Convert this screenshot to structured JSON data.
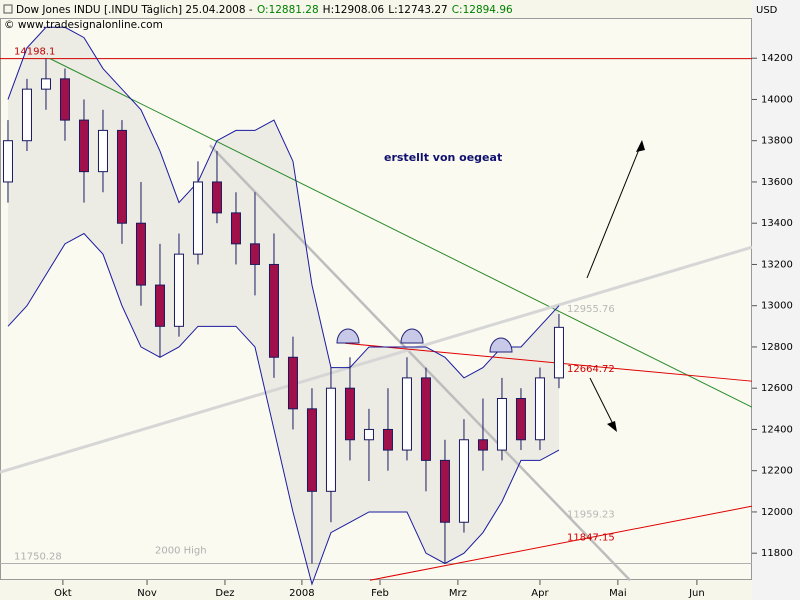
{
  "chart_data": {
    "type": "candlestick",
    "title": "Dow Jones INDU [.INDU  Täglich] 25.04.2008 -",
    "ohlc_labels": [
      {
        "text": "O:12881.28",
        "color": "#008000"
      },
      {
        "text": "H:12908.06",
        "color": "#000000"
      },
      {
        "text": "L:12743.27",
        "color": "#000000"
      },
      {
        "text": "C:12894.96",
        "color": "#008000"
      }
    ],
    "source": "© www.tradesignalonline.com",
    "y_unit": "USD",
    "note": "erstellt von oegeat",
    "xlim": [
      -0.42,
      39.16
    ],
    "xticks": [
      {
        "value": 2.89,
        "label": "Okt"
      },
      {
        "value": 7.32,
        "label": "Nov"
      },
      {
        "value": 11.42,
        "label": "Dez"
      },
      {
        "value": 15.47,
        "label": "2008"
      },
      {
        "value": 19.58,
        "label": "Feb"
      },
      {
        "value": 23.68,
        "label": "Mrz"
      },
      {
        "value": 28,
        "label": "Apr"
      },
      {
        "value": 32.1,
        "label": "Mai"
      },
      {
        "value": 36.26,
        "label": "Jun"
      }
    ],
    "ylim": [
      11670,
      14395
    ],
    "yticks": [
      11800,
      12000,
      12200,
      12400,
      12600,
      12800,
      13000,
      13200,
      13400,
      13600,
      13800,
      14000,
      14200
    ],
    "candles": {
      "up_color": "#ffffff",
      "down_color": "#a0104a",
      "wick_color": "#1a1a60",
      "open": [
        13600,
        13800,
        14050,
        14100,
        13900,
        13650,
        13850,
        13400,
        13100,
        12900,
        13250,
        13600,
        13450,
        13300,
        13200,
        12750,
        12500,
        12100,
        12600,
        12350,
        12400,
        12300,
        12650,
        12250,
        11950,
        12350,
        12300,
        12550,
        12350,
        12650
      ],
      "high": [
        13900,
        14100,
        14198,
        14150,
        14000,
        13950,
        13900,
        13600,
        13300,
        13350,
        13700,
        13750,
        13550,
        13550,
        13350,
        12850,
        12600,
        12700,
        12750,
        12500,
        12600,
        12750,
        12700,
        12350,
        12450,
        12550,
        12650,
        12600,
        12700,
        12960
      ],
      "low": [
        13500,
        13750,
        13950,
        13800,
        13500,
        13550,
        13300,
        13000,
        12750,
        12850,
        13200,
        13400,
        13200,
        13050,
        12650,
        12400,
        11750,
        11950,
        12250,
        12150,
        12200,
        12250,
        12100,
        11750,
        11900,
        12200,
        12250,
        12300,
        12300,
        12600
      ],
      "close": [
        13800,
        14050,
        14100,
        13900,
        13650,
        13850,
        13400,
        13100,
        12900,
        13250,
        13600,
        13450,
        13300,
        13200,
        12750,
        12500,
        12100,
        12600,
        12350,
        12400,
        12300,
        12650,
        12250,
        11950,
        12350,
        12300,
        12550,
        12350,
        12650,
        12895
      ]
    },
    "bands": {
      "color": "#1a1aa0",
      "fill": "#e6e6e0",
      "upper": [
        14000,
        14250,
        14350,
        14350,
        14300,
        14150,
        14050,
        13950,
        13750,
        13500,
        13600,
        13800,
        13850,
        13850,
        13900,
        13700,
        13100,
        12700,
        12700,
        12800,
        12800,
        12800,
        12800,
        12750,
        12650,
        12700,
        12800,
        12800,
        12900,
        13000
      ],
      "lower": [
        12900,
        13000,
        13150,
        13300,
        13350,
        13250,
        13000,
        12800,
        12750,
        12800,
        12900,
        12900,
        12900,
        12800,
        12400,
        12000,
        11650,
        11900,
        11950,
        12000,
        12000,
        12000,
        11800,
        11750,
        11800,
        11900,
        12050,
        12250,
        12250,
        12300
      ]
    },
    "levels": [
      {
        "value": 14198.1,
        "color": "#d00000"
      },
      {
        "value": 11750.28,
        "color": "#b0b0b0",
        "name": "2000 High"
      }
    ],
    "trendlines": [
      {
        "color": "#2a8a2a",
        "width": 1,
        "points": [
          [
            2.21,
            14198
          ],
          [
            39.16,
            12508
          ]
        ]
      },
      {
        "color": "#bdbdbd",
        "width": 2.5,
        "points": [
          [
            10.63,
            13778
          ],
          [
            32.74,
            11669
          ]
        ]
      },
      {
        "color": "#d6d6d6",
        "width": 3,
        "points": [
          [
            -0.42,
            12193
          ],
          [
            39.16,
            13284
          ]
        ]
      },
      {
        "color": "#e00000",
        "width": 1,
        "points": [
          [
            17.74,
            12818
          ],
          [
            39.16,
            12634
          ]
        ]
      },
      {
        "color": "#e00000",
        "width": 1,
        "points": [
          [
            19.05,
            11669
          ],
          [
            39.16,
            12028
          ]
        ]
      }
    ],
    "price_labels": [
      {
        "value": 12955.76,
        "color": "#b8b8b8"
      },
      {
        "value": 12664.72,
        "color": "#d00000"
      },
      {
        "value": 11959.23,
        "color": "#b8b8b8"
      },
      {
        "value": 11847.15,
        "color": "#d00000"
      }
    ]
  }
}
